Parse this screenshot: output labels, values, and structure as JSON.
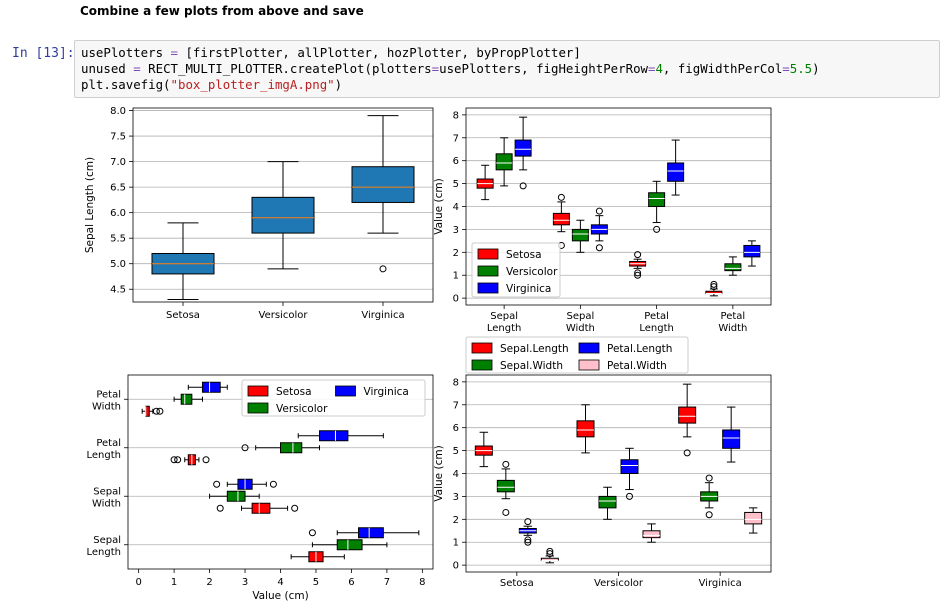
{
  "markdown": {
    "heading": "Combine a few plots from above and save"
  },
  "cell": {
    "prompt": "In [13]:",
    "line1": {
      "var": "usePlotters",
      "eq": " = ",
      "value": "[firstPlotter, allPlotter, hozPlotter, byPropPlotter]"
    },
    "line2": {
      "lhs": "unused",
      "eq": " = ",
      "call": "RECT_MULTI_PLOTTER.createPlot(plotters",
      "k1eq": "=",
      "k1v": "usePlotters, figHeightPerRow",
      "k2eq": "=",
      "k2num": "4",
      "mid": ", figWidthPerCol",
      "k3eq": "=",
      "k3num": "5.5",
      "end": ")"
    },
    "line3": {
      "pre": "plt.savefig(",
      "str": "\"box_plotter_imgA.png\"",
      "post": ")"
    }
  },
  "colors": {
    "setosa": "#ff0000",
    "versicolor": "#008000",
    "virginica": "#0000ff",
    "petal_width": "#ffc0cb",
    "default_box": "#1f77b4",
    "median_default": "#ff7f0e"
  },
  "chart_data": [
    {
      "type": "box",
      "ylabel": "Sepal Length (cm)",
      "categories": [
        "Setosa",
        "Versicolor",
        "Virginica"
      ],
      "ylim": [
        4.25,
        8.05
      ],
      "yticks": [
        "4.5",
        "5.0",
        "5.5",
        "6.0",
        "6.5",
        "7.0",
        "7.5",
        "8.0"
      ],
      "grid": true,
      "boxes": [
        {
          "q1": 4.8,
          "median": 5.0,
          "q3": 5.2,
          "whislo": 4.3,
          "whishi": 5.8,
          "fliers": []
        },
        {
          "q1": 5.6,
          "median": 5.9,
          "q3": 6.3,
          "whislo": 4.9,
          "whishi": 7.0,
          "fliers": []
        },
        {
          "q1": 6.2,
          "median": 6.5,
          "q3": 6.9,
          "whislo": 5.6,
          "whishi": 7.9,
          "fliers": [
            4.9
          ]
        }
      ]
    },
    {
      "type": "box",
      "ylabel": "Value (cm)",
      "categories": [
        "Sepal\nLength",
        "Sepal\nWidth",
        "Petal\nLength",
        "Petal\nWidth"
      ],
      "ylim": [
        -0.3,
        8.3
      ],
      "yticks": [
        "0",
        "1",
        "2",
        "3",
        "4",
        "5",
        "6",
        "7",
        "8"
      ],
      "legend": {
        "position": "lower-left",
        "entries": [
          "Setosa",
          "Versicolor",
          "Virginica"
        ]
      },
      "groups": [
        [
          {
            "q1": 4.8,
            "median": 5.0,
            "q3": 5.2,
            "whislo": 4.3,
            "whishi": 5.8,
            "fliers": []
          },
          {
            "q1": 5.6,
            "median": 5.9,
            "q3": 6.3,
            "whislo": 4.9,
            "whishi": 7.0,
            "fliers": []
          },
          {
            "q1": 6.2,
            "median": 6.5,
            "q3": 6.9,
            "whislo": 5.6,
            "whishi": 7.9,
            "fliers": [
              4.9
            ]
          }
        ],
        [
          {
            "q1": 3.2,
            "median": 3.4,
            "q3": 3.7,
            "whislo": 2.9,
            "whishi": 4.2,
            "fliers": [
              4.4,
              2.3
            ]
          },
          {
            "q1": 2.5,
            "median": 2.8,
            "q3": 3.0,
            "whislo": 2.0,
            "whishi": 3.4,
            "fliers": []
          },
          {
            "q1": 2.8,
            "median": 3.0,
            "q3": 3.2,
            "whislo": 2.5,
            "whishi": 3.6,
            "fliers": [
              3.8,
              2.2
            ]
          }
        ],
        [
          {
            "q1": 1.4,
            "median": 1.5,
            "q3": 1.6,
            "whislo": 1.3,
            "whishi": 1.7,
            "fliers": [
              1.9,
              1.0,
              1.1
            ]
          },
          {
            "q1": 4.0,
            "median": 4.35,
            "q3": 4.6,
            "whislo": 3.3,
            "whishi": 5.1,
            "fliers": [
              3.0
            ]
          },
          {
            "q1": 5.1,
            "median": 5.55,
            "q3": 5.9,
            "whislo": 4.5,
            "whishi": 6.9,
            "fliers": []
          }
        ],
        [
          {
            "q1": 0.2,
            "median": 0.2,
            "q3": 0.3,
            "whislo": 0.1,
            "whishi": 0.4,
            "fliers": [
              0.5,
              0.6
            ]
          },
          {
            "q1": 1.2,
            "median": 1.3,
            "q3": 1.5,
            "whislo": 1.0,
            "whishi": 1.8,
            "fliers": []
          },
          {
            "q1": 1.8,
            "median": 2.0,
            "q3": 2.3,
            "whislo": 1.4,
            "whishi": 2.5,
            "fliers": []
          }
        ]
      ]
    },
    {
      "type": "box-horizontal",
      "xlabel": "Value (cm)",
      "categories": [
        "Sepal\nLength",
        "Sepal\nWidth",
        "Petal\nLength",
        "Petal\nWidth"
      ],
      "xlim": [
        -0.3,
        8.3
      ],
      "xticks": [
        "0",
        "1",
        "2",
        "3",
        "4",
        "5",
        "6",
        "7",
        "8"
      ],
      "legend": {
        "position": "upper-right",
        "entries": [
          "Setosa",
          "Versicolor",
          "Virginica"
        ]
      },
      "groups": [
        [
          {
            "q1": 4.8,
            "median": 5.0,
            "q3": 5.2,
            "whislo": 4.3,
            "whishi": 5.8,
            "fliers": []
          },
          {
            "q1": 5.6,
            "median": 5.9,
            "q3": 6.3,
            "whislo": 4.9,
            "whishi": 7.0,
            "fliers": []
          },
          {
            "q1": 6.2,
            "median": 6.5,
            "q3": 6.9,
            "whislo": 5.6,
            "whishi": 7.9,
            "fliers": [
              4.9
            ]
          }
        ],
        [
          {
            "q1": 3.2,
            "median": 3.4,
            "q3": 3.7,
            "whislo": 2.9,
            "whishi": 4.2,
            "fliers": [
              4.4,
              2.3
            ]
          },
          {
            "q1": 2.5,
            "median": 2.8,
            "q3": 3.0,
            "whislo": 2.0,
            "whishi": 3.4,
            "fliers": []
          },
          {
            "q1": 2.8,
            "median": 3.0,
            "q3": 3.2,
            "whislo": 2.5,
            "whishi": 3.6,
            "fliers": [
              3.8,
              2.2
            ]
          }
        ],
        [
          {
            "q1": 1.4,
            "median": 1.5,
            "q3": 1.6,
            "whislo": 1.3,
            "whishi": 1.7,
            "fliers": [
              1.9,
              1.0,
              1.1
            ]
          },
          {
            "q1": 4.0,
            "median": 4.35,
            "q3": 4.6,
            "whislo": 3.3,
            "whishi": 5.1,
            "fliers": [
              3.0
            ]
          },
          {
            "q1": 5.1,
            "median": 5.55,
            "q3": 5.9,
            "whislo": 4.5,
            "whishi": 6.9,
            "fliers": []
          }
        ],
        [
          {
            "q1": 0.2,
            "median": 0.2,
            "q3": 0.3,
            "whislo": 0.1,
            "whishi": 0.4,
            "fliers": [
              0.5,
              0.6
            ]
          },
          {
            "q1": 1.2,
            "median": 1.3,
            "q3": 1.5,
            "whislo": 1.0,
            "whishi": 1.8,
            "fliers": []
          },
          {
            "q1": 1.8,
            "median": 2.0,
            "q3": 2.3,
            "whislo": 1.4,
            "whishi": 2.5,
            "fliers": []
          }
        ]
      ]
    },
    {
      "type": "box",
      "ylabel": "Value (cm)",
      "categories": [
        "Setosa",
        "Versicolor",
        "Virginica"
      ],
      "ylim": [
        -0.3,
        8.3
      ],
      "yticks": [
        "0",
        "1",
        "2",
        "3",
        "4",
        "5",
        "6",
        "7",
        "8"
      ],
      "legend": {
        "position": "above",
        "entries": [
          "Sepal.Length",
          "Petal.Length",
          "Sepal.Width",
          "Petal.Width"
        ]
      },
      "groups": [
        [
          {
            "q1": 4.8,
            "median": 5.0,
            "q3": 5.2,
            "whislo": 4.3,
            "whishi": 5.8,
            "fliers": []
          },
          {
            "q1": 3.2,
            "median": 3.4,
            "q3": 3.7,
            "whislo": 2.9,
            "whishi": 4.2,
            "fliers": [
              4.4,
              2.3
            ]
          },
          {
            "q1": 1.4,
            "median": 1.5,
            "q3": 1.6,
            "whislo": 1.3,
            "whishi": 1.7,
            "fliers": [
              1.9,
              1.0,
              1.1
            ]
          },
          {
            "q1": 0.2,
            "median": 0.2,
            "q3": 0.3,
            "whislo": 0.1,
            "whishi": 0.4,
            "fliers": [
              0.5,
              0.6
            ]
          }
        ],
        [
          {
            "q1": 5.6,
            "median": 5.9,
            "q3": 6.3,
            "whislo": 4.9,
            "whishi": 7.0,
            "fliers": []
          },
          {
            "q1": 2.5,
            "median": 2.8,
            "q3": 3.0,
            "whislo": 2.0,
            "whishi": 3.4,
            "fliers": []
          },
          {
            "q1": 4.0,
            "median": 4.35,
            "q3": 4.6,
            "whislo": 3.3,
            "whishi": 5.1,
            "fliers": [
              3.0
            ]
          },
          {
            "q1": 1.2,
            "median": 1.3,
            "q3": 1.5,
            "whislo": 1.0,
            "whishi": 1.8,
            "fliers": []
          }
        ],
        [
          {
            "q1": 6.2,
            "median": 6.5,
            "q3": 6.9,
            "whislo": 5.6,
            "whishi": 7.9,
            "fliers": [
              4.9
            ]
          },
          {
            "q1": 2.8,
            "median": 3.0,
            "q3": 3.2,
            "whislo": 2.5,
            "whishi": 3.6,
            "fliers": [
              3.8,
              2.2
            ]
          },
          {
            "q1": 5.1,
            "median": 5.55,
            "q3": 5.9,
            "whislo": 4.5,
            "whishi": 6.9,
            "fliers": []
          },
          {
            "q1": 1.8,
            "median": 2.0,
            "q3": 2.3,
            "whislo": 1.4,
            "whishi": 2.5,
            "fliers": []
          }
        ]
      ]
    }
  ]
}
